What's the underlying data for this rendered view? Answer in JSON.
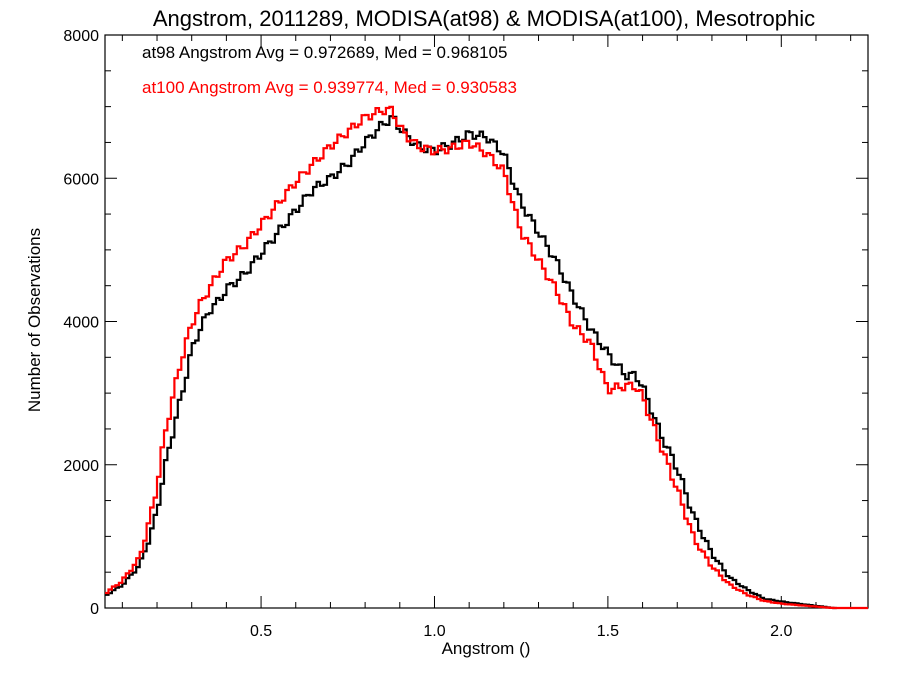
{
  "chart_data": {
    "type": "line",
    "title": "Angstrom, 2011289, MODISA(at98) & MODISA(at100), Mesotrophic",
    "xlabel": "Angstrom ()",
    "ylabel": "Number of Observations",
    "xlim": [
      0.05,
      2.25
    ],
    "ylim": [
      0,
      8000
    ],
    "xticks": [
      0.5,
      1.0,
      1.5,
      2.0
    ],
    "xtick_labels": [
      "0.5",
      "1.0",
      "1.5",
      "2.0"
    ],
    "yticks": [
      0,
      2000,
      4000,
      6000,
      8000
    ],
    "ytick_labels": [
      "0",
      "2000",
      "4000",
      "6000",
      "8000"
    ],
    "step_style": "histogram",
    "annotations": [
      {
        "text": "at98 Angstrom Avg = 0.972689, Med = 0.968105",
        "color": "#000000"
      },
      {
        "text": "at100 Angstrom Avg = 0.939774, Med = 0.930583",
        "color": "#ff0000"
      }
    ],
    "series": [
      {
        "color": "#000000",
        "x": [
          0.05,
          0.1,
          0.15,
          0.18,
          0.2,
          0.22,
          0.25,
          0.28,
          0.3,
          0.32,
          0.35,
          0.38,
          0.4,
          0.45,
          0.5,
          0.55,
          0.6,
          0.65,
          0.7,
          0.75,
          0.8,
          0.85,
          0.88,
          0.9,
          0.95,
          1.0,
          1.05,
          1.1,
          1.15,
          1.2,
          1.22,
          1.25,
          1.3,
          1.35,
          1.4,
          1.45,
          1.5,
          1.55,
          1.58,
          1.6,
          1.65,
          1.7,
          1.75,
          1.8,
          1.85,
          1.9,
          1.95,
          2.0,
          2.05,
          2.1,
          2.15
        ],
        "y": [
          170,
          320,
          600,
          1000,
          1350,
          1900,
          2550,
          3150,
          3600,
          3850,
          4150,
          4300,
          4450,
          4650,
          4950,
          5250,
          5550,
          5850,
          6000,
          6200,
          6500,
          6750,
          6850,
          6700,
          6450,
          6380,
          6480,
          6620,
          6580,
          6350,
          6050,
          5650,
          5250,
          4850,
          4350,
          3900,
          3550,
          3250,
          3250,
          3100,
          2450,
          1950,
          1250,
          760,
          430,
          260,
          130,
          90,
          60,
          30,
          0
        ]
      },
      {
        "color": "#ff0000",
        "x": [
          0.05,
          0.1,
          0.15,
          0.18,
          0.2,
          0.22,
          0.25,
          0.28,
          0.3,
          0.32,
          0.35,
          0.38,
          0.4,
          0.45,
          0.5,
          0.55,
          0.6,
          0.65,
          0.7,
          0.75,
          0.8,
          0.85,
          0.88,
          0.9,
          0.95,
          1.0,
          1.05,
          1.1,
          1.15,
          1.2,
          1.22,
          1.25,
          1.3,
          1.35,
          1.4,
          1.45,
          1.5,
          1.55,
          1.58,
          1.6,
          1.65,
          1.7,
          1.75,
          1.8,
          1.85,
          1.9,
          1.95,
          2.0,
          2.05,
          2.1,
          2.15,
          2.2
        ],
        "y": [
          200,
          380,
          700,
          1250,
          1700,
          2350,
          3050,
          3650,
          3950,
          4200,
          4450,
          4700,
          4850,
          5050,
          5350,
          5650,
          5950,
          6200,
          6450,
          6650,
          6850,
          6950,
          6950,
          6700,
          6450,
          6380,
          6420,
          6500,
          6350,
          6100,
          5750,
          5250,
          4850,
          4450,
          3950,
          3700,
          3050,
          3100,
          3100,
          2950,
          2300,
          1650,
          950,
          580,
          330,
          190,
          100,
          60,
          40,
          20,
          0,
          0
        ]
      }
    ]
  }
}
